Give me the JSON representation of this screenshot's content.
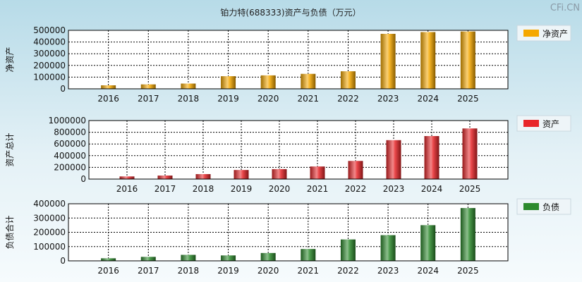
{
  "title": "铂力特(688333)资产与负债（万元）",
  "watermark": "CFi.CN",
  "chart_data": [
    {
      "type": "bar",
      "ylabel": "净资产",
      "legend": "净资产",
      "color": "#f5a800",
      "categories": [
        "2016",
        "2017",
        "2018",
        "2019",
        "2020",
        "2021",
        "2022",
        "2023",
        "2024",
        "2025"
      ],
      "values": [
        30000,
        38000,
        45000,
        108000,
        115000,
        128000,
        150000,
        470000,
        485000,
        490000
      ],
      "ylim": [
        0,
        500000
      ],
      "yticks": [
        0,
        100000,
        200000,
        300000,
        400000,
        500000
      ],
      "grid": true,
      "legend_position": "top-right"
    },
    {
      "type": "bar",
      "ylabel": "资产总计",
      "legend": "资产",
      "color": "#e8262a",
      "categories": [
        "2016",
        "2017",
        "2018",
        "2019",
        "2020",
        "2021",
        "2022",
        "2023",
        "2024",
        "2025"
      ],
      "values": [
        45000,
        60000,
        85000,
        155000,
        170000,
        215000,
        310000,
        665000,
        735000,
        865000
      ],
      "ylim": [
        0,
        1000000
      ],
      "yticks": [
        0,
        200000,
        400000,
        600000,
        800000,
        1000000
      ],
      "grid": true,
      "legend_position": "top-right"
    },
    {
      "type": "bar",
      "ylabel": "负债合计",
      "legend": "负债",
      "color": "#2d8a2d",
      "categories": [
        "2016",
        "2017",
        "2018",
        "2019",
        "2020",
        "2021",
        "2022",
        "2023",
        "2024",
        "2025"
      ],
      "values": [
        18000,
        28000,
        42000,
        38000,
        55000,
        83000,
        150000,
        180000,
        250000,
        370000
      ],
      "ylim": [
        0,
        400000
      ],
      "yticks": [
        0,
        100000,
        200000,
        300000,
        400000
      ],
      "grid": true,
      "legend_position": "top-right"
    }
  ]
}
